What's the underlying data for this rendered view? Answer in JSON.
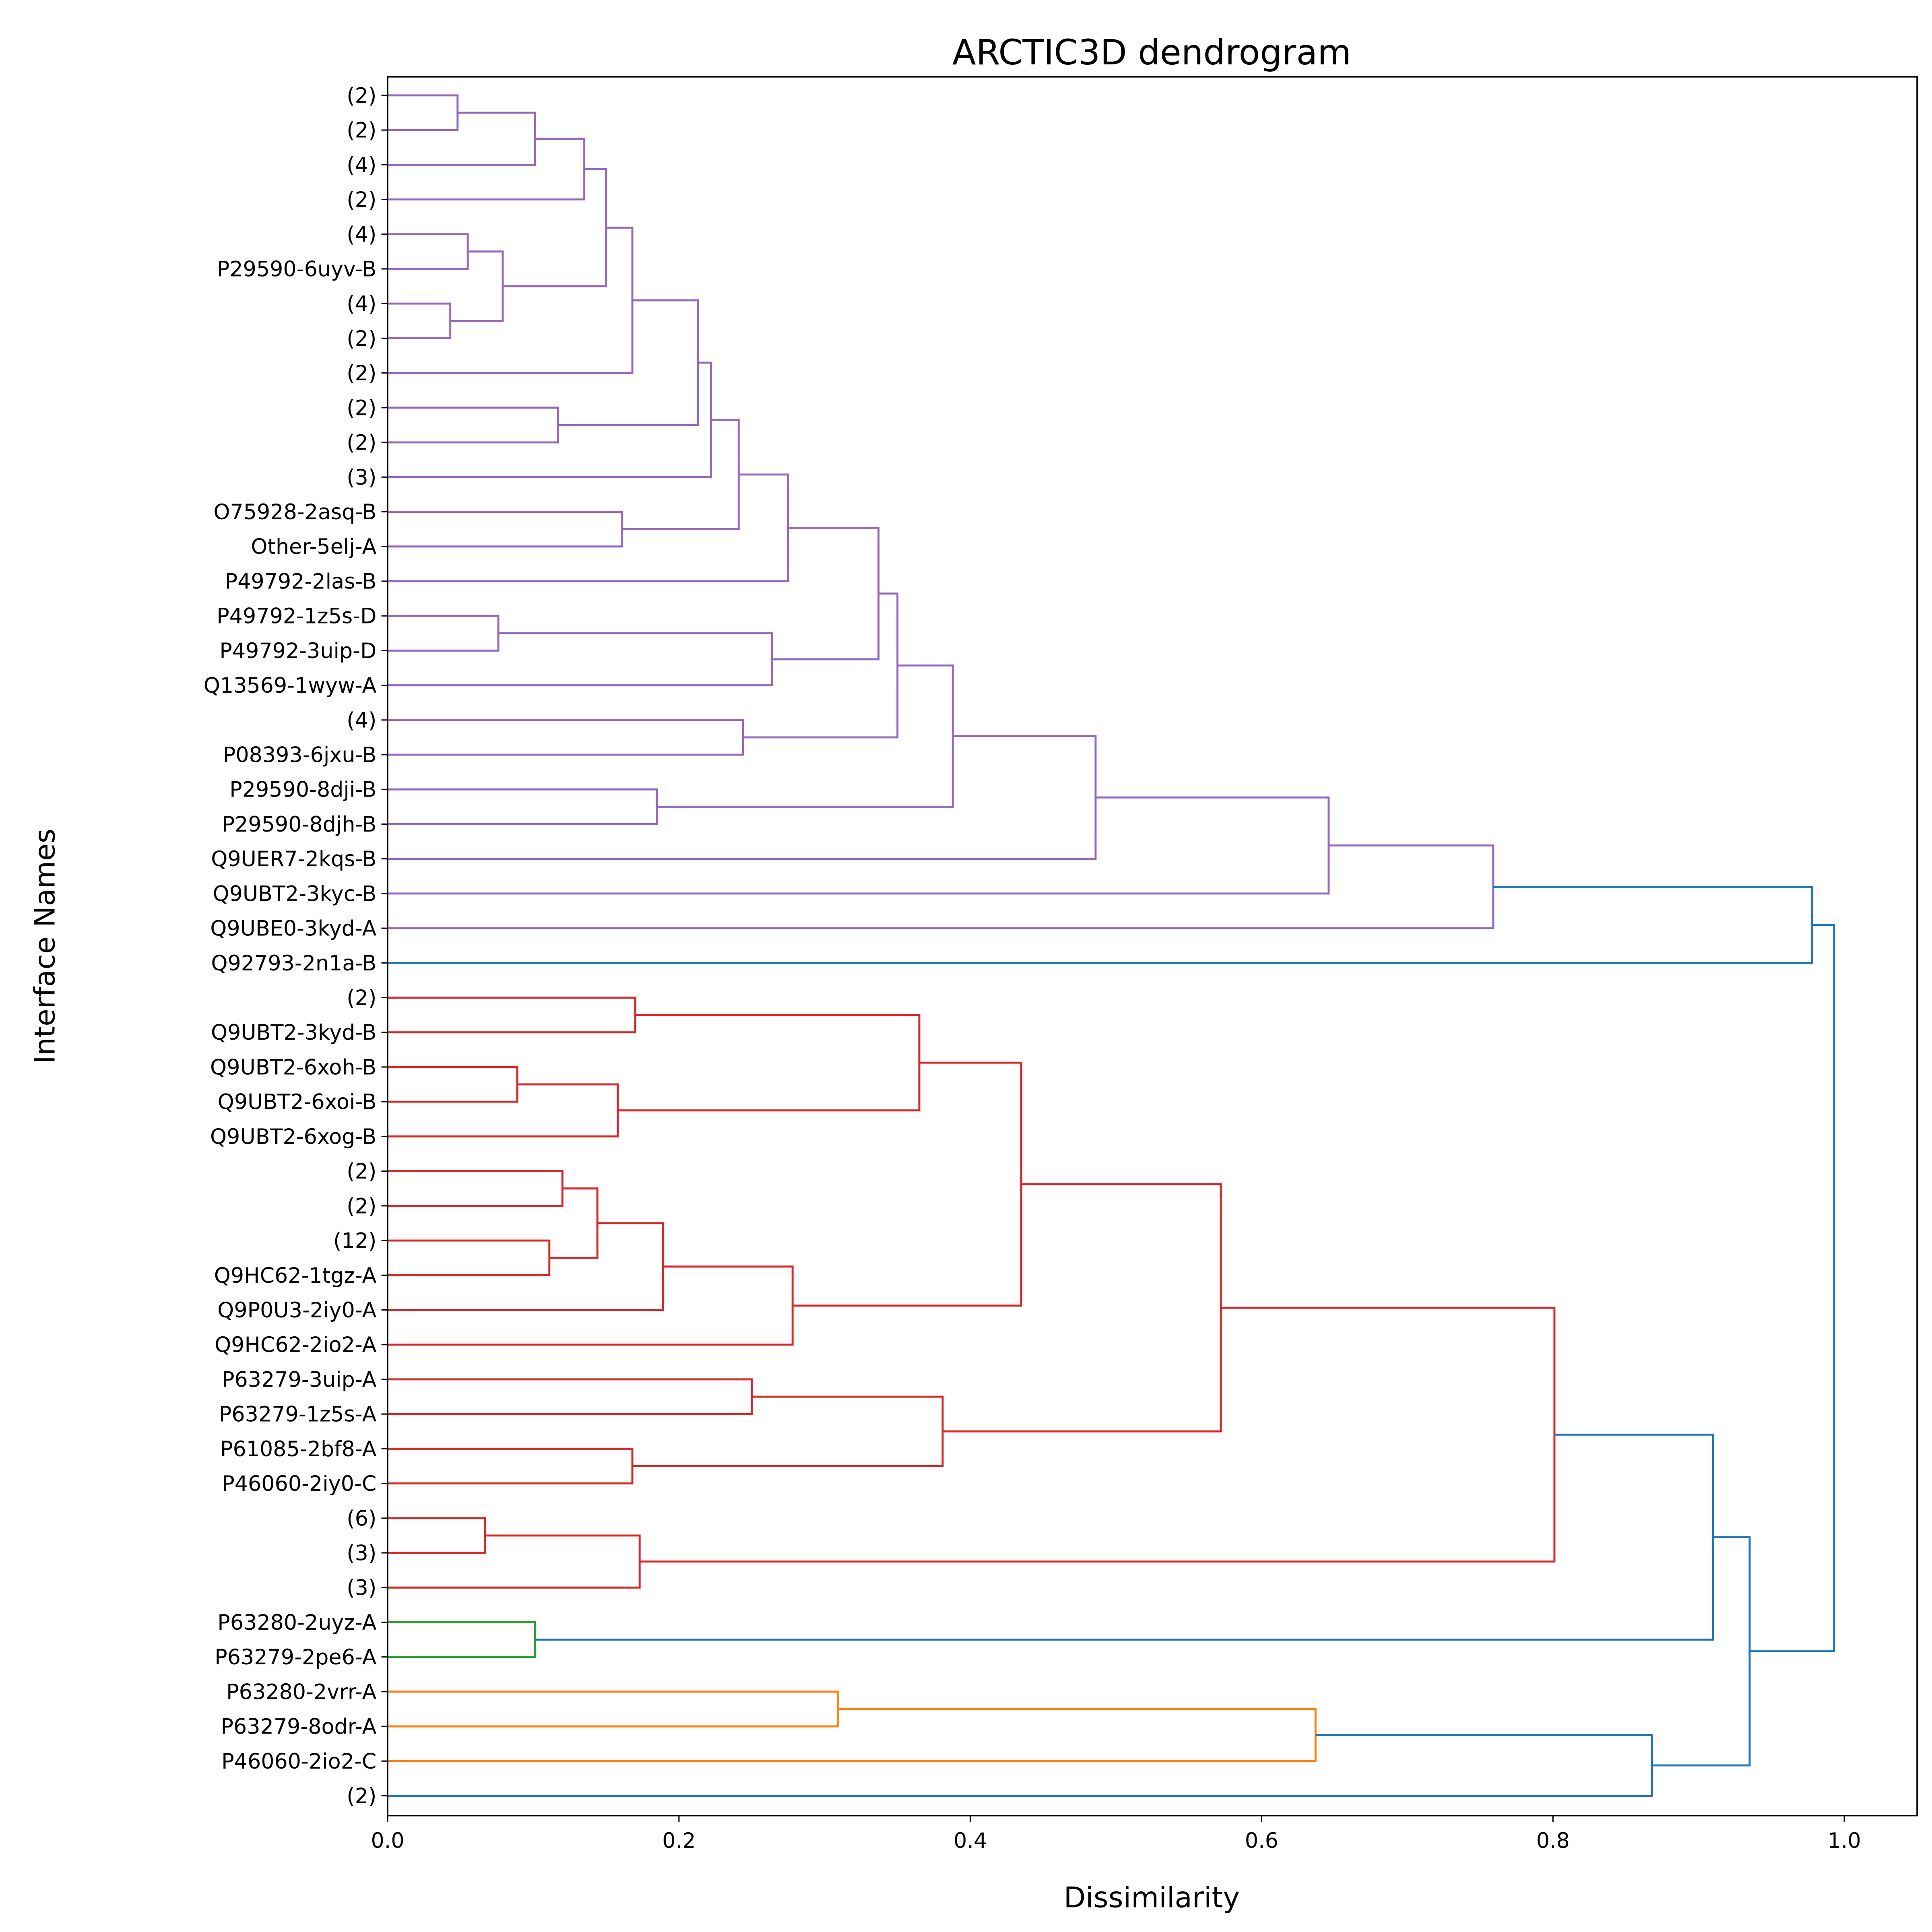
{
  "chart_data": {
    "type": "dendrogram",
    "title": "ARCTIC3D dendrogram",
    "xlabel": "Dissimilarity",
    "ylabel": "Interface Names",
    "xlim": [
      0,
      1.05
    ],
    "xticks": [
      0.0,
      0.2,
      0.4,
      0.6,
      0.8,
      1.0
    ],
    "xtick_labels": [
      "0.0",
      "0.2",
      "0.4",
      "0.6",
      "0.8",
      "1.0"
    ],
    "orientation": "right",
    "grid": false,
    "colors": {
      "purple": "#9467bd",
      "red": "#d62728",
      "green": "#2ca02c",
      "orange": "#ff7f0e",
      "blue": "#1f77b4"
    },
    "leaves": [
      "(2)",
      "(2)",
      "(4)",
      "(2)",
      "(4)",
      "P29590-6uyv-B",
      "(4)",
      "(2)",
      "(2)",
      "(2)",
      "(2)",
      "(3)",
      "O75928-2asq-B",
      "Other-5elj-A",
      "P49792-2las-B",
      "P49792-1z5s-D",
      "P49792-3uip-D",
      "Q13569-1wyw-A",
      "(4)",
      "P08393-6jxu-B",
      "P29590-8dji-B",
      "P29590-8djh-B",
      "Q9UER7-2kqs-B",
      "Q9UBT2-3kyc-B",
      "Q9UBE0-3kyd-A",
      "Q92793-2n1a-B",
      "(2)",
      "Q9UBT2-3kyd-B",
      "Q9UBT2-6xoh-B",
      "Q9UBT2-6xoi-B",
      "Q9UBT2-6xog-B",
      "(2)",
      "(2)",
      "(12)",
      "Q9HC62-1tgz-A",
      "Q9P0U3-2iy0-A",
      "Q9HC62-2io2-A",
      "P63279-3uip-A",
      "P63279-1z5s-A",
      "P61085-2bf8-A",
      "P46060-2iy0-C",
      "(6)",
      "(3)",
      "(3)",
      "P63280-2uyz-A",
      "P63279-2pe6-A",
      "P63280-2vrr-A",
      "P63279-8odr-A",
      "P46060-2io2-C",
      "(2)"
    ],
    "merges": [
      [
        0,
        1,
        0.048,
        "purple"
      ],
      [
        50,
        2,
        0.101,
        "purple"
      ],
      [
        51,
        3,
        0.135,
        "purple"
      ],
      [
        4,
        5,
        0.055,
        "purple"
      ],
      [
        6,
        7,
        0.043,
        "purple"
      ],
      [
        53,
        54,
        0.079,
        "purple"
      ],
      [
        52,
        55,
        0.15,
        "purple"
      ],
      [
        56,
        8,
        0.168,
        "purple"
      ],
      [
        9,
        10,
        0.117,
        "purple"
      ],
      [
        57,
        58,
        0.213,
        "purple"
      ],
      [
        59,
        11,
        0.222,
        "purple"
      ],
      [
        12,
        13,
        0.161,
        "purple"
      ],
      [
        60,
        61,
        0.241,
        "purple"
      ],
      [
        62,
        14,
        0.275,
        "purple"
      ],
      [
        15,
        16,
        0.076,
        "purple"
      ],
      [
        64,
        17,
        0.264,
        "purple"
      ],
      [
        63,
        65,
        0.337,
        "purple"
      ],
      [
        18,
        19,
        0.244,
        "purple"
      ],
      [
        66,
        67,
        0.35,
        "purple"
      ],
      [
        20,
        21,
        0.185,
        "purple"
      ],
      [
        68,
        69,
        0.388,
        "purple"
      ],
      [
        70,
        22,
        0.486,
        "purple"
      ],
      [
        71,
        23,
        0.646,
        "purple"
      ],
      [
        72,
        24,
        0.759,
        "purple"
      ],
      [
        73,
        25,
        0.978,
        "blue"
      ],
      [
        26,
        27,
        0.17,
        "red"
      ],
      [
        28,
        29,
        0.089,
        "red"
      ],
      [
        76,
        30,
        0.158,
        "red"
      ],
      [
        75,
        77,
        0.365,
        "red"
      ],
      [
        31,
        32,
        0.12,
        "red"
      ],
      [
        33,
        34,
        0.111,
        "red"
      ],
      [
        79,
        80,
        0.144,
        "red"
      ],
      [
        81,
        35,
        0.189,
        "red"
      ],
      [
        82,
        36,
        0.278,
        "red"
      ],
      [
        78,
        83,
        0.435,
        "red"
      ],
      [
        37,
        38,
        0.25,
        "red"
      ],
      [
        39,
        40,
        0.168,
        "red"
      ],
      [
        85,
        86,
        0.381,
        "red"
      ],
      [
        84,
        87,
        0.572,
        "red"
      ],
      [
        41,
        42,
        0.067,
        "red"
      ],
      [
        89,
        43,
        0.173,
        "red"
      ],
      [
        88,
        90,
        0.801,
        "red"
      ],
      [
        44,
        45,
        0.101,
        "green"
      ],
      [
        91,
        92,
        0.91,
        "blue"
      ],
      [
        46,
        47,
        0.309,
        "orange"
      ],
      [
        94,
        48,
        0.637,
        "orange"
      ],
      [
        95,
        49,
        0.868,
        "blue"
      ],
      [
        93,
        96,
        0.935,
        "blue"
      ],
      [
        74,
        97,
        0.993,
        "blue"
      ]
    ]
  }
}
